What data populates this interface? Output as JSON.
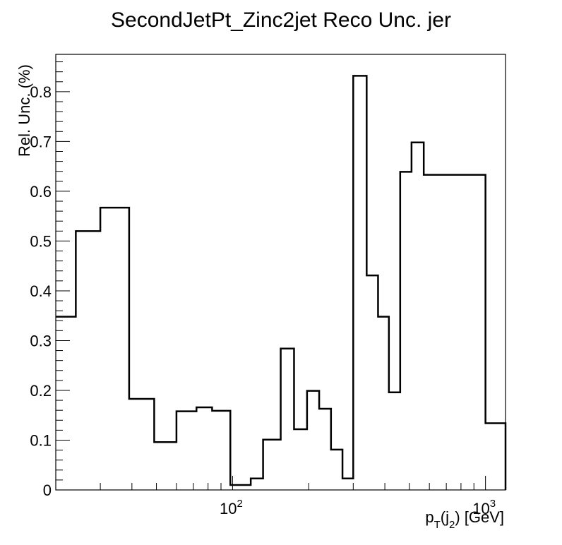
{
  "chart_data": {
    "type": "step-histogram",
    "title": "SecondJetPt_Zinc2jet Reco Unc. jer",
    "ylabel": "Rel. Unc. (%)",
    "xlabel": {
      "p": "p",
      "p_sub": "T",
      "paren_open": "(j",
      "j_sub": "2",
      "paren_close": ") [GeV]"
    },
    "x_scale": "log",
    "xlim": [
      20,
      1200
    ],
    "ylim": [
      0,
      0.875
    ],
    "y_ticks": [
      {
        "value": 0,
        "label": "0"
      },
      {
        "value": 0.1,
        "label": "0.1"
      },
      {
        "value": 0.2,
        "label": "0.2"
      },
      {
        "value": 0.3,
        "label": "0.3"
      },
      {
        "value": 0.4,
        "label": "0.4"
      },
      {
        "value": 0.5,
        "label": "0.5"
      },
      {
        "value": 0.6,
        "label": "0.6"
      },
      {
        "value": 0.7,
        "label": "0.7"
      },
      {
        "value": 0.8,
        "label": "0.8"
      }
    ],
    "x_tick_labels": [
      {
        "value": 100,
        "base": "10",
        "exp": "2"
      },
      {
        "value": 1000,
        "base": "10",
        "exp": "3"
      }
    ],
    "bin_edges": [
      20,
      24,
      30,
      39,
      49,
      60,
      72,
      83,
      98,
      118,
      132,
      155,
      175,
      197,
      220,
      245,
      272,
      300,
      339,
      376,
      415,
      460,
      510,
      570,
      1000,
      1200
    ],
    "values": [
      0.348,
      0.52,
      0.567,
      0.183,
      0.096,
      0.158,
      0.166,
      0.159,
      0.01,
      0.023,
      0.101,
      0.284,
      0.122,
      0.199,
      0.163,
      0.081,
      0.023,
      0.832,
      0.431,
      0.348,
      0.196,
      0.639,
      0.698,
      0.633,
      0.134,
      0.0
    ],
    "line_color": "#000000",
    "grid": false,
    "legend": "none"
  }
}
